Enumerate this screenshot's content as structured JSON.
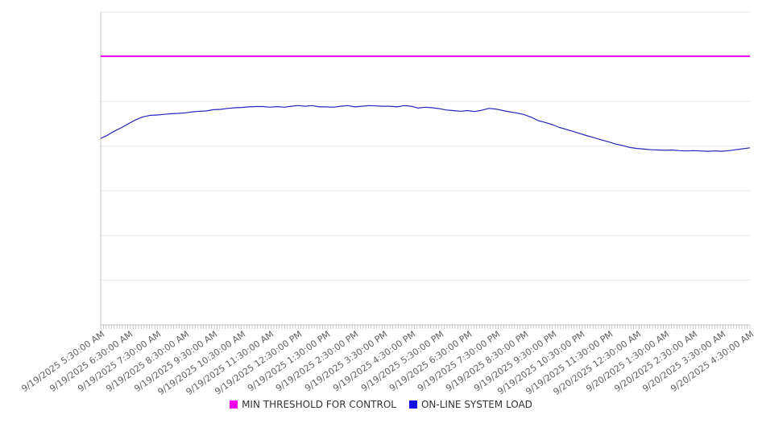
{
  "chart_data": {
    "type": "line",
    "title": "",
    "grid": true,
    "legend_position": "bottom-center",
    "background_color": "#ffffff",
    "y_axis": {
      "labels_visible": false,
      "gridline_count": 8,
      "note": "no y-axis tick labels are shown in the image; series values below are expressed as percent of plot-area height (0 = bottom axis, 100 = top gridline)"
    },
    "x_axis": {
      "label_interval": "1 hour",
      "minor_tick_count": 241,
      "labels": [
        "9/19/2025 5:30:00 AM",
        "9/19/2025 6:30:00 AM",
        "9/19/2025 7:30:00 AM",
        "9/19/2025 8:30:00 AM",
        "9/19/2025 9:30:00 AM",
        "9/19/2025 10:30:00 AM",
        "9/19/2025 11:30:00 AM",
        "9/19/2025 12:30:00 PM",
        "9/19/2025 1:30:00 PM",
        "9/19/2025 2:30:00 PM",
        "9/19/2025 3:30:00 PM",
        "9/19/2025 4:30:00 PM",
        "9/19/2025 5:30:00 PM",
        "9/19/2025 6:30:00 PM",
        "9/19/2025 7:30:00 PM",
        "9/19/2025 8:30:00 PM",
        "9/19/2025 9:30:00 PM",
        "9/19/2025 10:30:00 PM",
        "9/19/2025 11:30:00 PM",
        "9/20/2025 12:30:00 AM",
        "9/20/2025 1:30:00 AM",
        "9/20/2025 2:30:00 AM",
        "9/20/2025 3:30:00 AM",
        "9/20/2025 4:30:00 AM"
      ]
    },
    "sample_interval_minutes": 15,
    "series": [
      {
        "name": "MIN THRESHOLD FOR CONTROL",
        "type": "constant-horizontal-line",
        "color": "#ee00ee",
        "line_width": 2,
        "value_pct": 85.9
      },
      {
        "name": "ON-LINE SYSTEM LOAD",
        "type": "line",
        "color": "#2525bb",
        "line_width": 1.2,
        "values_pct": [
          59.6,
          60.7,
          62.0,
          63.1,
          64.4,
          65.6,
          66.5,
          67.0,
          67.1,
          67.3,
          67.5,
          67.6,
          67.8,
          68.1,
          68.3,
          68.4,
          68.8,
          68.9,
          69.2,
          69.4,
          69.5,
          69.7,
          69.8,
          69.8,
          69.6,
          69.8,
          69.6,
          69.9,
          70.1,
          69.9,
          70.1,
          69.7,
          69.7,
          69.6,
          69.9,
          70.1,
          69.7,
          69.9,
          70.1,
          70.0,
          69.9,
          69.9,
          69.7,
          70.1,
          69.9,
          69.3,
          69.6,
          69.4,
          69.1,
          68.7,
          68.5,
          68.3,
          68.5,
          68.2,
          68.6,
          69.2,
          69.0,
          68.5,
          68.1,
          67.7,
          67.2,
          66.4,
          65.3,
          64.7,
          64.0,
          63.1,
          62.5,
          61.8,
          61.1,
          60.4,
          59.8,
          59.1,
          58.5,
          57.8,
          57.3,
          56.7,
          56.4,
          56.2,
          56.0,
          55.9,
          55.8,
          55.9,
          55.7,
          55.6,
          55.7,
          55.6,
          55.5,
          55.6,
          55.5,
          55.7,
          56.0,
          56.3,
          56.6
        ]
      }
    ],
    "colors": {
      "gridline": "#e7e7e7",
      "axis_line": "#c3c3c3",
      "minor_tick": "#b5b5b5",
      "x_label_text": "#5f5f5f",
      "legend_text": "#333333"
    },
    "legend": [
      {
        "label": "MIN THRESHOLD FOR CONTROL",
        "swatch_color": "#f400f4"
      },
      {
        "label": "ON-LINE SYSTEM LOAD",
        "swatch_color": "#1010e0"
      }
    ]
  }
}
